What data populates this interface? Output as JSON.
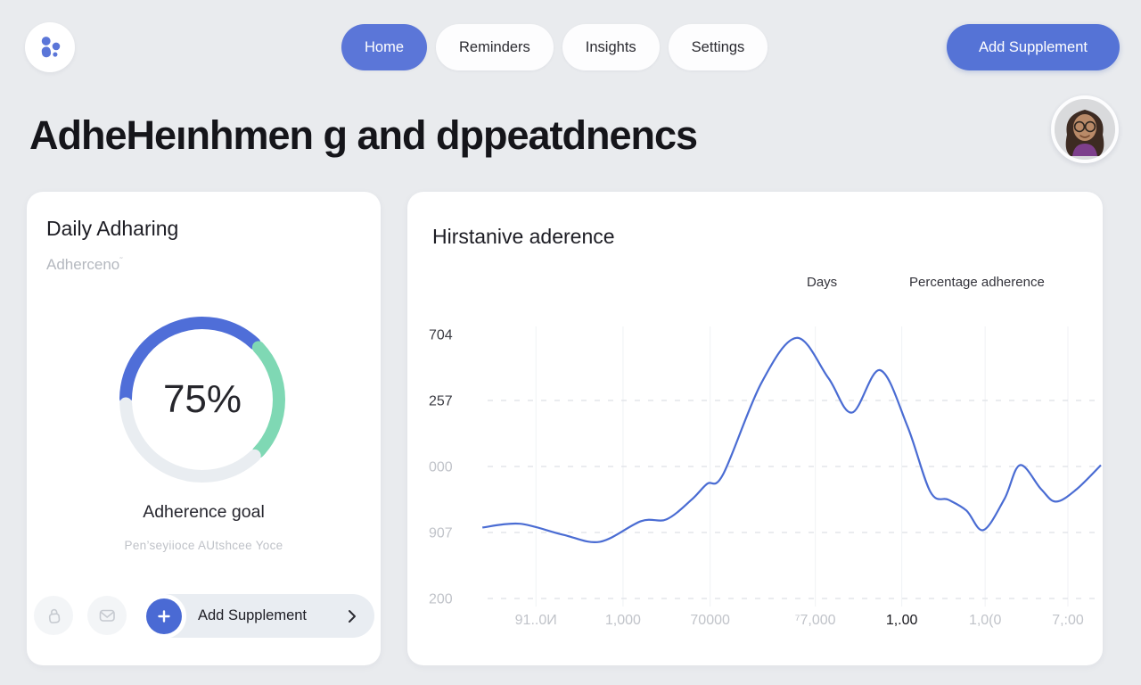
{
  "colors": {
    "accent_blue": "#5573d6",
    "nav_active_blue": "#5b76d8",
    "donut_primary_blue": "#4f6ed8",
    "donut_secondary_green": "#7fd8b4",
    "donut_track_gray": "#e9edf1",
    "line_blue": "#4a6cd3",
    "page_background": "#e9ebee"
  },
  "header": {
    "nav": [
      {
        "label": "Home",
        "active": true
      },
      {
        "label": "Reminders",
        "active": false
      },
      {
        "label": "Insights",
        "active": false
      },
      {
        "label": "Settings",
        "active": false
      }
    ],
    "add_supplement_label": "Add Supplement"
  },
  "page_title": "AdheHeınhmen g and dppeatdnencs",
  "adherence_card": {
    "title": "Daily Adharing",
    "subtitle": "Adherceno",
    "subtitle_mark": "˜",
    "donut": {
      "center_label": "75%",
      "segments": [
        {
          "name": "primary",
          "color": "#4f6ed8",
          "start": 271,
          "sweep": 132
        },
        {
          "name": "secondary",
          "color": "#7fd8b4",
          "start": 47,
          "sweep": 86
        },
        {
          "name": "track",
          "color": "#e9edf1",
          "start": 137,
          "sweep": 130
        }
      ]
    },
    "goal_label": "Adherence goal",
    "goal_caption": "Pen’seyiioce AUtshcee Yoce",
    "add_supplement_label": "Add Supplement"
  },
  "chart_card": {
    "title": "Hirstanive aderence",
    "legend_days": "Days",
    "legend_series": "Percentage adherence"
  },
  "chart_data": {
    "type": "line",
    "title": "Hirstanive aderence",
    "legend_position": "top-right",
    "series_name": "Percentage adherence",
    "line_color": "#4a6cd3",
    "x_tick_labels": [
      "91..0И",
      "1,000",
      "70000",
      "⁷7,000",
      "1,.00",
      "1,0(0",
      "7,:00"
    ],
    "x_ticks": [
      0.092,
      0.232,
      0.372,
      0.541,
      0.68,
      0.814,
      0.947
    ],
    "x_tick_emphasis_index": 4,
    "y_tick_labels": [
      "704",
      "257",
      "000",
      "907",
      "200"
    ],
    "y_tick_dark_count": 2,
    "grid": {
      "horizontal_dashed": true,
      "vertical": true,
      "vgrid_color": "#f0f2f4",
      "hgrid_color": "#e3e6ea",
      "tick_dark_color": "#3c3d44",
      "tick_gray_color": "#c0c3c9"
    },
    "points": [
      [
        0.006,
        26.9
      ],
      [
        0.066,
        28.3
      ],
      [
        0.135,
        24.2
      ],
      [
        0.195,
        21.5
      ],
      [
        0.261,
        29.3
      ],
      [
        0.302,
        30.0
      ],
      [
        0.342,
        37.4
      ],
      [
        0.367,
        43.4
      ],
      [
        0.393,
        47.1
      ],
      [
        0.454,
        81.5
      ],
      [
        0.511,
        98.7
      ],
      [
        0.562,
        83.5
      ],
      [
        0.6,
        70.4
      ],
      [
        0.645,
        86.5
      ],
      [
        0.689,
        65.3
      ],
      [
        0.726,
        40.4
      ],
      [
        0.755,
        37.4
      ],
      [
        0.784,
        33.3
      ],
      [
        0.811,
        25.9
      ],
      [
        0.845,
        37.7
      ],
      [
        0.87,
        50.5
      ],
      [
        0.904,
        41.4
      ],
      [
        0.928,
        36.7
      ],
      [
        0.961,
        41.4
      ],
      [
        1.0,
        50.5
      ]
    ]
  }
}
